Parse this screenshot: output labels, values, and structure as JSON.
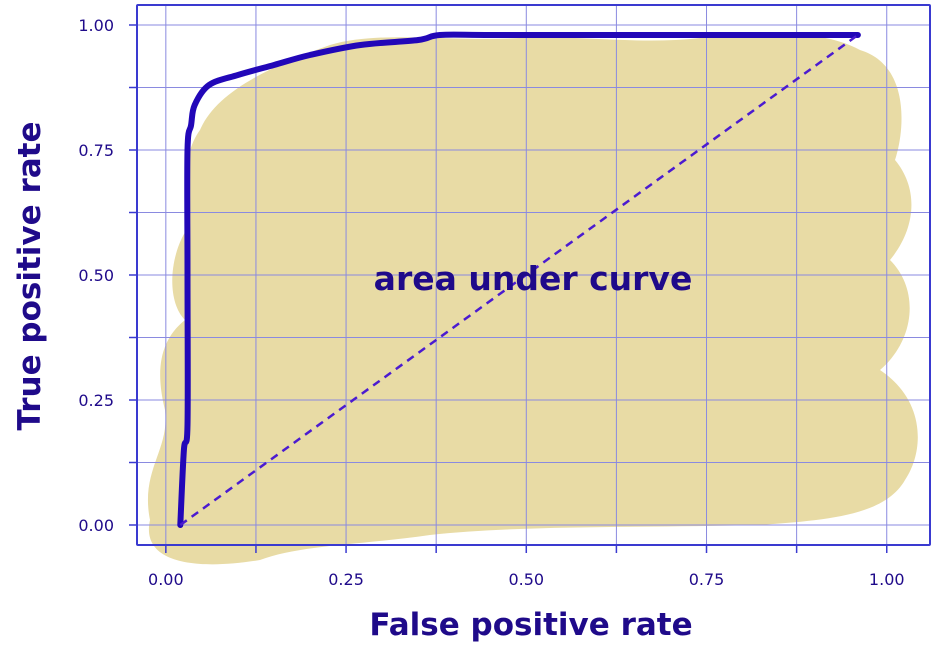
{
  "chart_data": {
    "type": "line",
    "xlabel": "False positive rate",
    "ylabel": "True positive rate",
    "xlim": [
      -0.04,
      1.06
    ],
    "ylim": [
      -0.04,
      1.04
    ],
    "x_ticks": [
      0.0,
      0.25,
      0.5,
      0.75,
      1.0
    ],
    "x_tick_labels": [
      "0.00",
      "0.25",
      "0.50",
      "0.75",
      "1.00"
    ],
    "y_ticks": [
      0.0,
      0.25,
      0.5,
      0.75,
      1.0
    ],
    "y_tick_labels": [
      "0.00",
      "0.25",
      "0.50",
      "0.75",
      "1.00"
    ],
    "grid": true,
    "annotation": "area under curve",
    "series": [
      {
        "style": "solid",
        "color": "#2207b8",
        "x": [
          0.02,
          0.025,
          0.03,
          0.03,
          0.03,
          0.035,
          0.04,
          0.06,
          0.1,
          0.15,
          0.2,
          0.27,
          0.35,
          0.38,
          0.45,
          0.6,
          0.8,
          0.96
        ],
        "y": [
          0.0,
          0.15,
          0.2,
          0.5,
          0.75,
          0.8,
          0.84,
          0.88,
          0.9,
          0.92,
          0.94,
          0.96,
          0.97,
          0.98,
          0.98,
          0.98,
          0.98,
          0.98
        ]
      },
      {
        "style": "dashed",
        "color": "#4b1bd0",
        "x": [
          0.02,
          0.96
        ],
        "y": [
          0.0,
          0.98
        ]
      }
    ],
    "colors": {
      "area_fill": "#e8dba5",
      "grid": "#8a8ae0",
      "frame": "#3a3ad0",
      "text": "#1f0a8a"
    }
  }
}
